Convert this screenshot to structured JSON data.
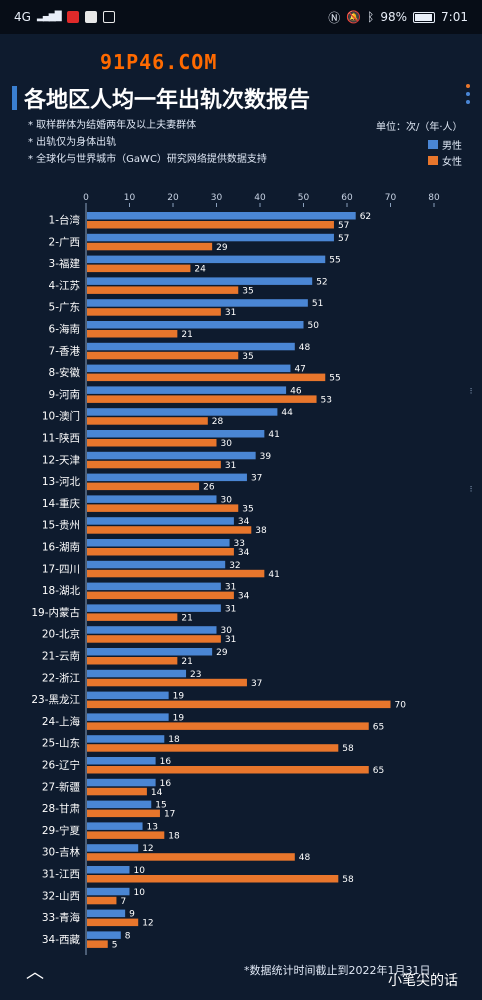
{
  "status_bar": {
    "network": "4G",
    "signal": "▂▄▆█",
    "battery": "98%",
    "time": "7:01",
    "icons": [
      "nfc-icon",
      "mute-icon",
      "bluetooth-icon",
      "battery-icon"
    ]
  },
  "watermark": "91P46.COM",
  "title": "各地区人均一年出轨次数报告",
  "notes": [
    "* 取样群体为结婚两年及以上夫妻群体",
    "* 出轨仅为身体出轨",
    "* 全球化与世界城市（GaWC）研究网络提供数据支持"
  ],
  "unit_label": "单位：次/（年·人）",
  "footnote": "*数据统计时间截止到2022年1月31日",
  "signature": "小笔尖的话",
  "colors": {
    "male": "#4a86d4",
    "female": "#e8762c",
    "background": "#0e1b2e"
  },
  "chart_data": {
    "type": "bar",
    "orientation": "horizontal",
    "title": "各地区人均一年出轨次数报告",
    "x_ticks": [
      0,
      10,
      20,
      30,
      40,
      50,
      60,
      70,
      80
    ],
    "xlim": [
      0,
      80
    ],
    "legend_position": "top-right",
    "grid": false,
    "categories": [
      "1-台湾",
      "2-广西",
      "3-福建",
      "4-江苏",
      "5-广东",
      "6-海南",
      "7-香港",
      "8-安徽",
      "9-河南",
      "10-澳门",
      "11-陕西",
      "12-天津",
      "13-河北",
      "14-重庆",
      "15-贵州",
      "16-湖南",
      "17-四川",
      "18-湖北",
      "19-内蒙古",
      "20-北京",
      "21-云南",
      "22-浙江",
      "23-黑龙江",
      "24-上海",
      "25-山东",
      "26-辽宁",
      "27-新疆",
      "28-甘肃",
      "29-宁夏",
      "30-吉林",
      "31-江西",
      "32-山西",
      "33-青海",
      "34-西藏"
    ],
    "series": [
      {
        "name": "男性",
        "color": "#4a86d4",
        "values": [
          62,
          57,
          55,
          52,
          51,
          50,
          48,
          47,
          46,
          44,
          41,
          39,
          37,
          30,
          34,
          33,
          32,
          31,
          31,
          30,
          29,
          23,
          19,
          19,
          18,
          16,
          16,
          15,
          13,
          12,
          10,
          10,
          9,
          8
        ]
      },
      {
        "name": "女性",
        "color": "#e8762c",
        "values": [
          57,
          29,
          24,
          35,
          31,
          21,
          35,
          55,
          53,
          28,
          30,
          31,
          26,
          35,
          38,
          34,
          41,
          34,
          21,
          31,
          21,
          37,
          70,
          65,
          58,
          65,
          14,
          17,
          18,
          48,
          58,
          7,
          12,
          5
        ]
      }
    ]
  }
}
